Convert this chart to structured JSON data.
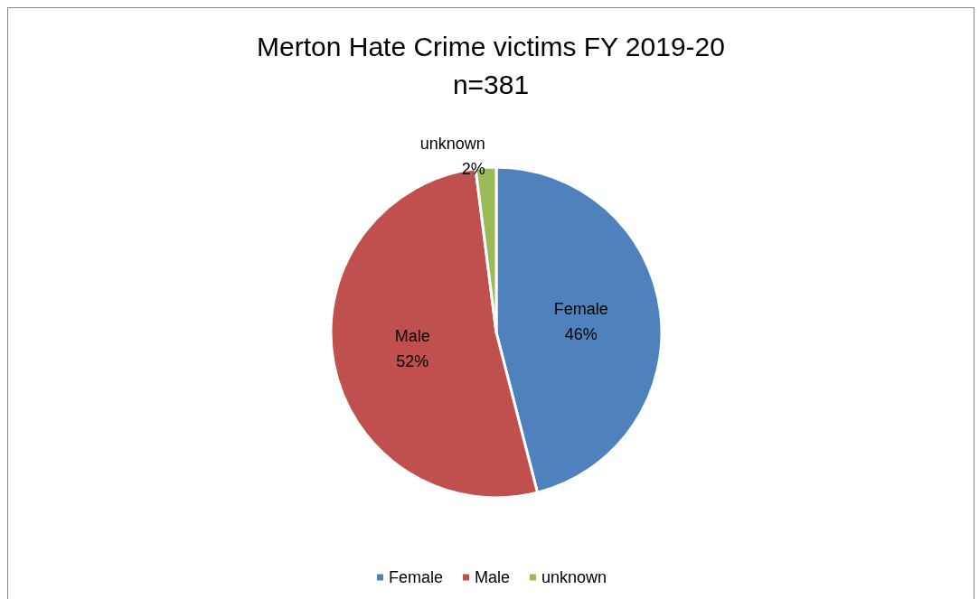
{
  "chart_data": {
    "type": "pie",
    "title": "Merton Hate Crime victims FY 2019-20",
    "subtitle": "n=381",
    "categories": [
      "Female",
      "Male",
      "unknown"
    ],
    "values": [
      46,
      52,
      2
    ],
    "colors": [
      "#4f81bd",
      "#c0504d",
      "#9bbb59"
    ],
    "value_labels": [
      "46%",
      "52%",
      "2%"
    ],
    "legend": "bottom"
  }
}
